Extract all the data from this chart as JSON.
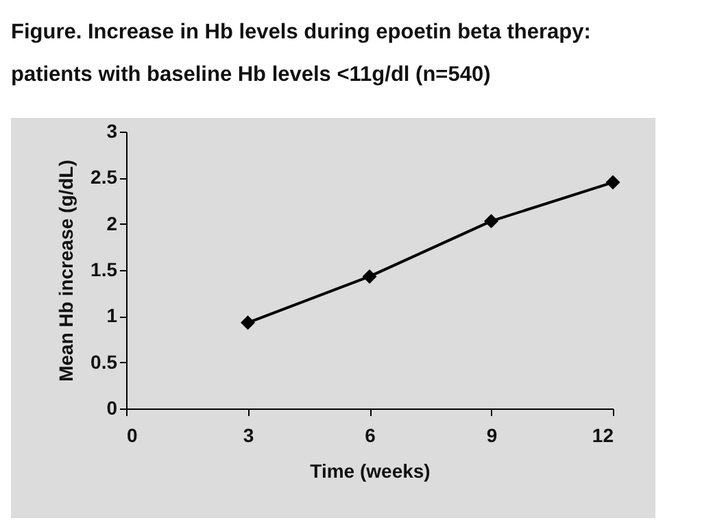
{
  "chart_data": {
    "type": "line",
    "title": "Figure. Increase in Hb levels during epoetin beta therapy: patients with baseline Hb levels <11g/dl (n=540)",
    "xlabel": "Time (weeks)",
    "ylabel": "Mean Hb increase (g/dL)",
    "x": [
      3,
      6,
      9,
      12
    ],
    "series": [
      {
        "color": "#000000",
        "values": [
          0.93,
          1.43,
          2.03,
          2.45
        ]
      }
    ],
    "xlim": [
      0,
      12
    ],
    "xticks": [
      0,
      3,
      6,
      9,
      12
    ],
    "ylim": [
      0,
      3
    ],
    "yticks": [
      0,
      0.5,
      1,
      1.5,
      2,
      2.5,
      3
    ],
    "legend": false,
    "marker": "diamond",
    "line_style": "solid"
  }
}
